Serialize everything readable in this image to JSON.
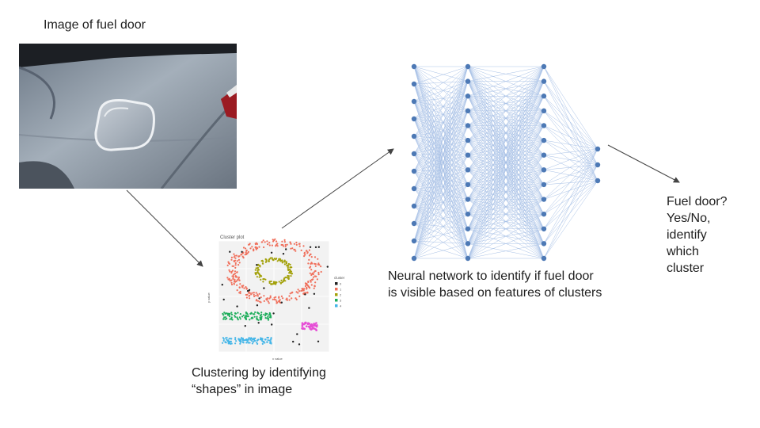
{
  "photo": {
    "title": "Image of fuel door"
  },
  "cluster": {
    "caption": "Clustering by identifying\n“shapes” in image",
    "plot_title": "Cluster plot",
    "xlabel": "x value",
    "ylabel": "y value",
    "legend_title": "cluster",
    "legend_items": [
      "0",
      "1",
      "2",
      "3",
      "4"
    ],
    "colors": [
      "#222222",
      "#f0705c",
      "#a3a10a",
      "#1fae5c",
      "#45b6e8",
      "#e64fd6"
    ]
  },
  "network": {
    "caption": "Neural network to identify if fuel door\nis visible based on features of clusters",
    "layers": [
      12,
      14,
      14,
      3
    ],
    "node_color": "#4d79b5",
    "edge_color": "#a7c0e6"
  },
  "output": {
    "caption": "Fuel door?\nYes/No,\nidentify\nwhich\ncluster"
  }
}
